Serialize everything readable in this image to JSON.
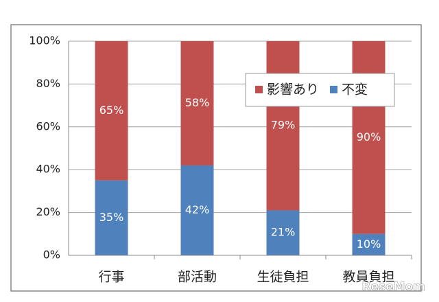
{
  "chart_data": {
    "type": "stacked_bar",
    "categories": [
      "行事",
      "部活動",
      "生徒負担",
      "教員負担"
    ],
    "series": [
      {
        "name": "影響あり",
        "color": "#c0504d",
        "values": [
          65,
          58,
          79,
          90
        ],
        "value_labels": [
          "65%",
          "58%",
          "79%",
          "90%"
        ]
      },
      {
        "name": "不変",
        "color": "#4f81bd",
        "values": [
          35,
          42,
          21,
          10
        ],
        "value_labels": [
          "35%",
          "42%",
          "21%",
          "10%"
        ]
      }
    ],
    "ylim": [
      0,
      100
    ],
    "yticks": [
      {
        "value": 0,
        "label": "0%"
      },
      {
        "value": 20,
        "label": "20%"
      },
      {
        "value": 40,
        "label": "40%"
      },
      {
        "value": 60,
        "label": "60%"
      },
      {
        "value": 80,
        "label": "80%"
      },
      {
        "value": 100,
        "label": "100%"
      }
    ],
    "grid": true,
    "legend": "upper right"
  },
  "watermark": "ReseMom"
}
